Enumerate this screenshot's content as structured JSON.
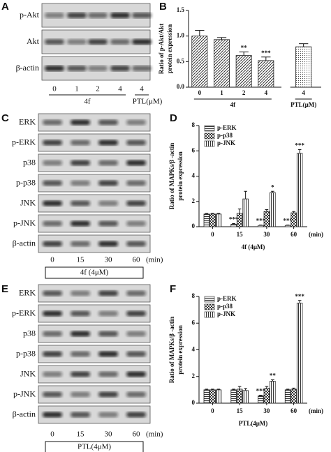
{
  "blots": [
    {
      "panel": "A",
      "rows": [
        "p-Akt",
        "Akt",
        "β-actin"
      ],
      "lanes": [
        "0",
        "1",
        "2",
        "4",
        "4"
      ],
      "groups": [
        "4f",
        "PTL(μM)"
      ]
    },
    {
      "panel": "C",
      "rows": [
        "ERK",
        "p-ERK",
        "p38",
        "p-p38",
        "JNK",
        "p-JNK",
        "β-actin"
      ],
      "lanes": [
        "0",
        "15",
        "30",
        "60"
      ],
      "unit": "(min)",
      "group": "4f (4μM)"
    },
    {
      "panel": "E",
      "rows": [
        "ERK",
        "p-ERK",
        "p38",
        "p-p38",
        "JNK",
        "p-JNK",
        "β-actin"
      ],
      "lanes": [
        "0",
        "15",
        "30",
        "60"
      ],
      "unit": "(min)",
      "group": "PTL(4μM)"
    }
  ],
  "chart_data": [
    {
      "type": "bar",
      "panel": "B",
      "ylabel": [
        "Ratio of p-Akt/Akt",
        "protein expression"
      ],
      "categories": [
        "0",
        "1",
        "2",
        "4",
        "4"
      ],
      "groups": [
        "4f",
        "PTL(μM)"
      ],
      "values": [
        1.0,
        0.93,
        0.62,
        0.52,
        0.79
      ],
      "errors": [
        0.11,
        0.04,
        0.07,
        0.07,
        0.06
      ],
      "stars": [
        null,
        null,
        "**",
        "***",
        null
      ],
      "color": "#333333",
      "ylim": [
        0,
        1.5
      ],
      "yticks": [
        {
          "value": 0,
          "label": "0.0"
        },
        {
          "value": 0.5,
          "label": "0.5"
        },
        {
          "value": 1,
          "label": "1.0"
        },
        {
          "value": 1.5,
          "label": "1.5"
        }
      ]
    },
    {
      "type": "grouped_bar",
      "panel": "D",
      "ylabel": [
        "Ratio of MAPKs/β -actin",
        "protein expression"
      ],
      "categories": [
        "0",
        "15",
        "30",
        "60"
      ],
      "unit": "(min)",
      "xlabel": "4f (4μM)",
      "legend": "top-left",
      "series": [
        {
          "name": "p-ERK",
          "color": "#333333",
          "values": [
            1.0,
            0.2,
            0.1,
            0.1
          ],
          "errors": [
            0.05,
            0.05,
            0.03,
            0.03
          ],
          "stars": [
            null,
            "***",
            "***",
            "***"
          ]
        },
        {
          "name": "p-p38",
          "color": "#333333",
          "values": [
            1.0,
            1.05,
            1.2,
            1.1
          ],
          "errors": [
            0.05,
            0.35,
            0.15,
            0.1
          ],
          "stars": [
            null,
            null,
            null,
            null
          ]
        },
        {
          "name": "p-JNK",
          "color": "#333333",
          "values": [
            1.0,
            2.2,
            2.7,
            5.8
          ],
          "errors": [
            0.05,
            0.6,
            0.1,
            0.3
          ],
          "stars": [
            null,
            null,
            "*",
            "***"
          ]
        }
      ],
      "ylim": [
        0,
        8
      ],
      "yticks": [
        0,
        2,
        4,
        6,
        8
      ]
    },
    {
      "type": "grouped_bar",
      "panel": "F",
      "ylabel": [
        "Ratio of MAPKs/β -actin",
        "protein expression"
      ],
      "categories": [
        "0",
        "15",
        "30",
        "60"
      ],
      "unit": "(min)",
      "xlabel": "PTL(4μM)",
      "legend": "top-left",
      "series": [
        {
          "name": "p-ERK",
          "color": "#333333",
          "values": [
            1.0,
            1.0,
            0.55,
            1.0
          ],
          "errors": [
            0.05,
            0.05,
            0.05,
            0.05
          ],
          "stars": [
            null,
            null,
            "***",
            null
          ]
        },
        {
          "name": "p-p38",
          "color": "#333333",
          "values": [
            1.0,
            1.05,
            1.1,
            1.05
          ],
          "errors": [
            0.05,
            0.2,
            0.15,
            0.08
          ],
          "stars": [
            null,
            null,
            null,
            null
          ]
        },
        {
          "name": "p-JNK",
          "color": "#333333",
          "values": [
            1.0,
            0.95,
            1.65,
            7.5
          ],
          "errors": [
            0.05,
            0.15,
            0.1,
            0.2
          ],
          "stars": [
            null,
            null,
            "**",
            "***"
          ]
        }
      ],
      "ylim": [
        0,
        8
      ],
      "yticks": [
        0,
        2,
        4,
        6,
        8
      ]
    }
  ]
}
